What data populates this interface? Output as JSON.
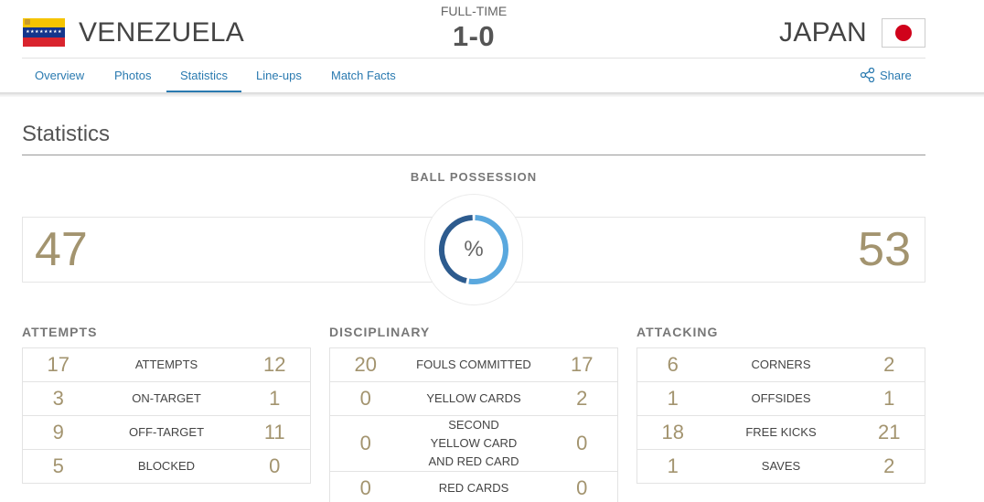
{
  "match": {
    "status": "FULL-TIME",
    "score": "1-0",
    "home_team": "VENEZUELA",
    "away_team": "JAPAN"
  },
  "tabs": [
    {
      "label": "Overview",
      "active": false
    },
    {
      "label": "Photos",
      "active": false
    },
    {
      "label": "Statistics",
      "active": true
    },
    {
      "label": "Line-ups",
      "active": false
    },
    {
      "label": "Match Facts",
      "active": false
    }
  ],
  "share_label": "Share",
  "section_title": "Statistics",
  "possession": {
    "label": "BALL POSSESSION",
    "home": "47",
    "away": "53",
    "symbol": "%",
    "home_fraction": 0.47
  },
  "attempts": {
    "title": "ATTEMPTS",
    "rows": [
      {
        "home": "17",
        "label": "ATTEMPTS",
        "away": "12"
      },
      {
        "home": "3",
        "label": "ON-TARGET",
        "away": "1"
      },
      {
        "home": "9",
        "label": "OFF-TARGET",
        "away": "11"
      },
      {
        "home": "5",
        "label": "BLOCKED",
        "away": "0"
      }
    ]
  },
  "disciplinary": {
    "title": "DISCIPLINARY",
    "rows": [
      {
        "home": "20",
        "label": "FOULS COMMITTED",
        "away": "17"
      },
      {
        "home": "0",
        "label": "YELLOW CARDS",
        "away": "2"
      },
      {
        "home": "0",
        "label": "SECOND YELLOW CARD AND RED CARD",
        "away": "0"
      },
      {
        "home": "0",
        "label": "RED CARDS",
        "away": "0"
      }
    ]
  },
  "attacking": {
    "title": "ATTACKING",
    "rows": [
      {
        "home": "6",
        "label": "CORNERS",
        "away": "2"
      },
      {
        "home": "1",
        "label": "OFFSIDES",
        "away": "1"
      },
      {
        "home": "18",
        "label": "FREE KICKS",
        "away": "21"
      },
      {
        "home": "1",
        "label": "SAVES",
        "away": "2"
      }
    ]
  },
  "colors": {
    "link": "#2a7ab0",
    "stat_number": "#a3946f",
    "donut_home": "#2d5b8e",
    "donut_away": "#5aa8de"
  },
  "icons": {
    "share": "share-icon"
  }
}
